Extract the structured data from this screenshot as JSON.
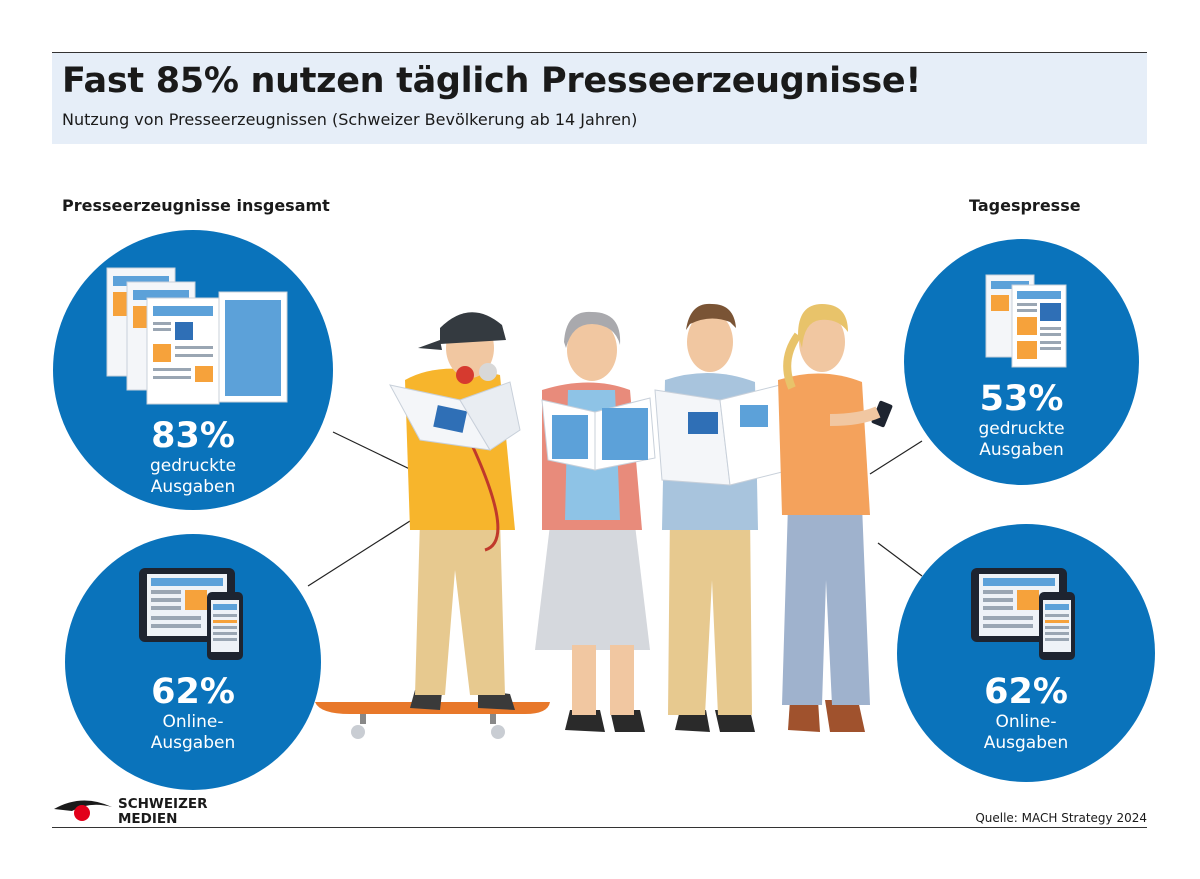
{
  "header": {
    "title": "Fast 85% nutzen täglich Presseerzeugnisse!",
    "subtitle": "Nutzung von Presseerzeugnissen (Schweizer Bevölkerung ab 14 Jahren)"
  },
  "sections": {
    "left_label": "Presseerzeugnisse insgesamt",
    "right_label": "Tagespresse"
  },
  "stats": {
    "left_print": {
      "percent": "83%",
      "line1": "gedruckte",
      "line2": "Ausgaben",
      "icon": "newspaper-stack-icon"
    },
    "left_online": {
      "percent": "62%",
      "line1": "Online-",
      "line2": "Ausgaben",
      "icon": "tablet-phone-icon"
    },
    "right_print": {
      "percent": "53%",
      "line1": "gedruckte",
      "line2": "Ausgaben",
      "icon": "newspaper-icon"
    },
    "right_online": {
      "percent": "62%",
      "line1": "Online-",
      "line2": "Ausgaben",
      "icon": "tablet-phone-icon"
    }
  },
  "footer": {
    "brand_line1": "SCHWEIZER",
    "brand_line2": "MEDIEN",
    "source": "Quelle: MACH Strategy 2024"
  },
  "colors": {
    "circle_blue": "#0a73bb",
    "header_bg": "#e6eef8",
    "accent_orange": "#f6a23b",
    "brand_red": "#e2001a"
  }
}
